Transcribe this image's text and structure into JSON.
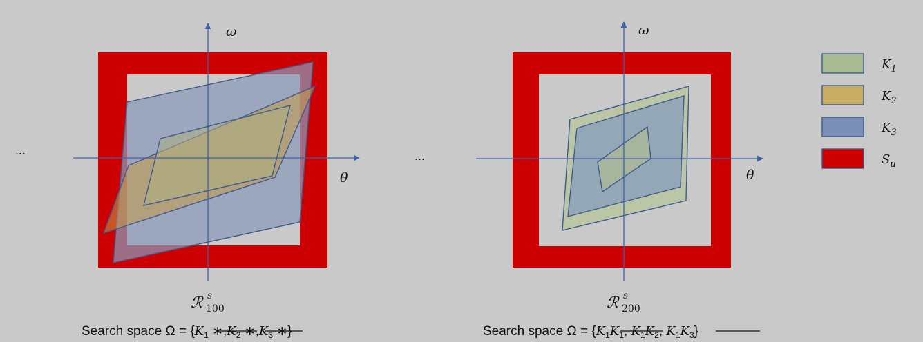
{
  "left_panel": {
    "ellipsis": "...",
    "axis_y": "ω",
    "axis_x": "θ",
    "region_label": {
      "base": "ℛ",
      "sup": "s",
      "sub": "100"
    },
    "caption": {
      "prefix": "Search space  Ω = {",
      "kept": "K",
      "kept_sub": "1",
      "kept_rest": " ∗,",
      "struck_1": "K",
      "struck_1_sub": "2",
      "struck_1_rest": " ∗",
      "sep": ",",
      "struck_2": "K",
      "struck_2_sub": "3",
      "struck_2_rest": " ∗",
      "suffix": "}"
    }
  },
  "right_panel": {
    "ellipsis": "...",
    "axis_y": "ω",
    "axis_x": "θ",
    "region_label": {
      "base": "ℛ",
      "sup": "s",
      "sub": "200"
    },
    "caption": {
      "prefix": "Search space  Ω = {",
      "struck_1": "K",
      "struck_1_sub_a": "1",
      "struck_1_b": "K",
      "struck_1_sub_b": "1",
      "sep1": ", ",
      "kept": "K",
      "kept_sub_a": "1",
      "kept_b": "K",
      "kept_sub_b": "2",
      "sep2": ",  ",
      "struck_2": "K",
      "struck_2_sub_a": "1",
      "struck_2_b": "K",
      "struck_2_sub_b": "3",
      "suffix": "}"
    }
  },
  "legend": [
    {
      "name": "K",
      "sub": "1",
      "color": "#a9bb92",
      "icon": "k1-swatch"
    },
    {
      "name": "K",
      "sub": "2",
      "color": "#c8ae62",
      "icon": "k2-swatch"
    },
    {
      "name": "K",
      "sub": "3",
      "color": "#7b90b6",
      "icon": "k3-swatch"
    },
    {
      "name": "S",
      "sub": "u",
      "color": "#cc0000",
      "icon": "su-swatch"
    }
  ],
  "colors": {
    "background": "#c9c9c9",
    "unsafe_region": "#cc0000",
    "axis": "#3f62a8",
    "k1": "#a9bb92",
    "k2": "#c8ae62",
    "k3": "#7b90b6"
  }
}
